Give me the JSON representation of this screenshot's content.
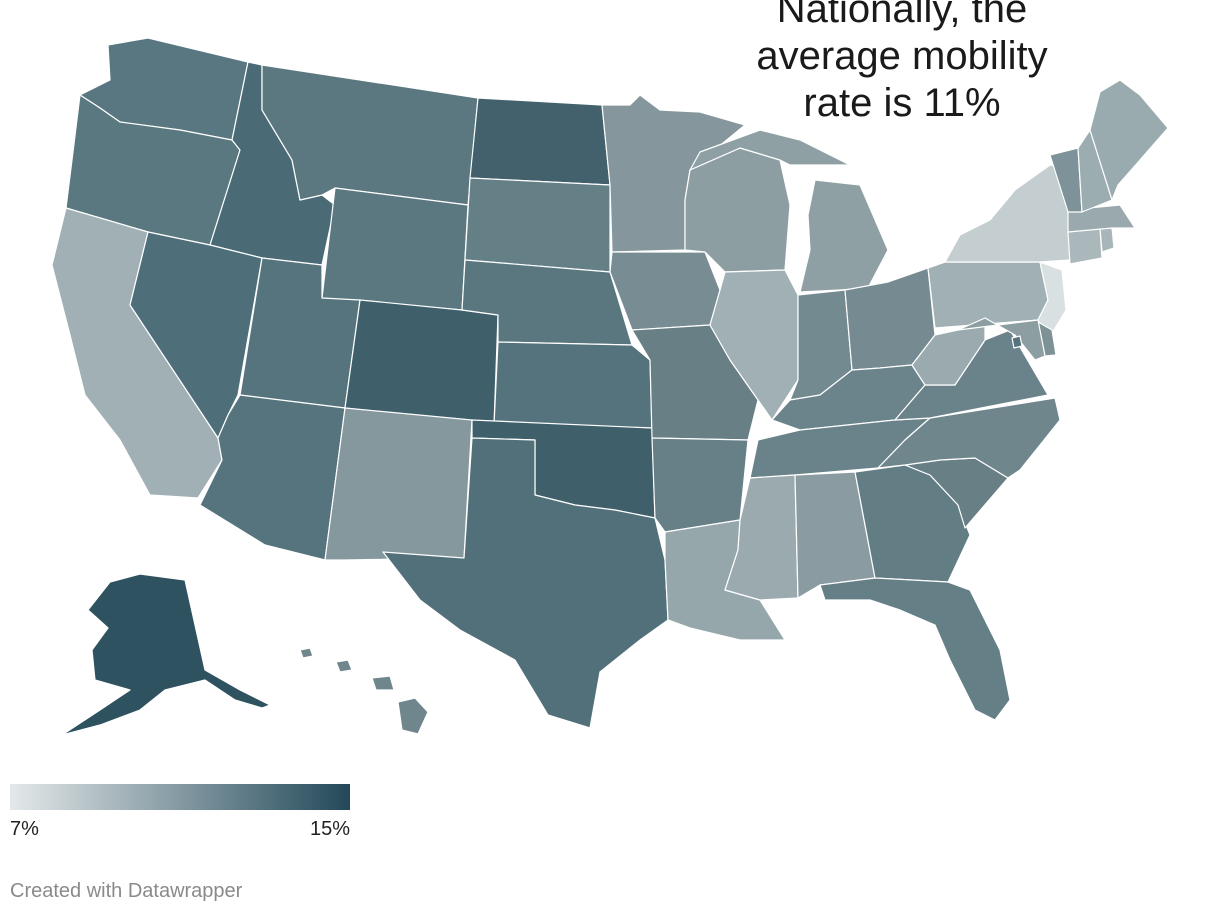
{
  "annotation": {
    "line1": "Nationally, the",
    "line2": "average mobility",
    "line3": "rate is 11%"
  },
  "legend": {
    "min_label": "7%",
    "max_label": "15%",
    "color_low": "#e4e9ea",
    "color_high": "#23495a"
  },
  "credit": "Created with Datawrapper",
  "colors": {
    "background": "#ffffff",
    "border": "#ffffff"
  },
  "states": {
    "WA": {
      "name": "Washington",
      "color": "#587780"
    },
    "OR": {
      "name": "Oregon",
      "color": "#5a7880"
    },
    "CA": {
      "name": "California",
      "color": "#a0b0b4"
    },
    "ID": {
      "name": "Idaho",
      "color": "#4a6a75"
    },
    "NV": {
      "name": "Nevada",
      "color": "#4e6e79"
    },
    "MT": {
      "name": "Montana",
      "color": "#5b7880"
    },
    "WY": {
      "name": "Wyoming",
      "color": "#5b7880"
    },
    "UT": {
      "name": "Utah",
      "color": "#55747e"
    },
    "AZ": {
      "name": "Arizona",
      "color": "#55747e"
    },
    "CO": {
      "name": "Colorado",
      "color": "#3f5f6b"
    },
    "NM": {
      "name": "New Mexico",
      "color": "#85989d"
    },
    "ND": {
      "name": "North Dakota",
      "color": "#42616d"
    },
    "SD": {
      "name": "South Dakota",
      "color": "#657f87"
    },
    "NE": {
      "name": "Nebraska",
      "color": "#5a7780"
    },
    "KS": {
      "name": "Kansas",
      "color": "#55737d"
    },
    "OK": {
      "name": "Oklahoma",
      "color": "#3f5f6b"
    },
    "TX": {
      "name": "Texas",
      "color": "#52707a"
    },
    "MN": {
      "name": "Minnesota",
      "color": "#85979c"
    },
    "IA": {
      "name": "Iowa",
      "color": "#788d93"
    },
    "MO": {
      "name": "Missouri",
      "color": "#687f86"
    },
    "AR": {
      "name": "Arkansas",
      "color": "#677f86"
    },
    "LA": {
      "name": "Louisiana",
      "color": "#95a7ab"
    },
    "WI": {
      "name": "Wisconsin",
      "color": "#8d9ea2"
    },
    "IL": {
      "name": "Illinois",
      "color": "#a1b0b4"
    },
    "MI": {
      "name": "Michigan",
      "color": "#8fa0a4"
    },
    "IN": {
      "name": "Indiana",
      "color": "#728a90"
    },
    "OH": {
      "name": "Ohio",
      "color": "#758b91"
    },
    "KY": {
      "name": "Kentucky",
      "color": "#6b838a"
    },
    "TN": {
      "name": "Tennessee",
      "color": "#6a8289"
    },
    "MS": {
      "name": "Mississippi",
      "color": "#9aaaae"
    },
    "AL": {
      "name": "Alabama",
      "color": "#8a9ca1"
    },
    "GA": {
      "name": "Georgia",
      "color": "#637d85"
    },
    "FL": {
      "name": "Florida",
      "color": "#657f87"
    },
    "SC": {
      "name": "South Carolina",
      "color": "#687f86"
    },
    "NC": {
      "name": "North Carolina",
      "color": "#6f868c"
    },
    "VA": {
      "name": "Virginia",
      "color": "#6a8289"
    },
    "WV": {
      "name": "West Virginia",
      "color": "#9aaaae"
    },
    "PA": {
      "name": "Pennsylvania",
      "color": "#a1b0b4"
    },
    "NY": {
      "name": "New York",
      "color": "#c4ced1"
    },
    "NJ": {
      "name": "New Jersey",
      "color": "#d9e0e2"
    },
    "DE": {
      "name": "Delaware",
      "color": "#7d9297"
    },
    "MD": {
      "name": "Maryland",
      "color": "#8d9ea2"
    },
    "DC": {
      "name": "District of Columbia",
      "color": "#55737d"
    },
    "CT": {
      "name": "Connecticut",
      "color": "#aab8bc"
    },
    "RI": {
      "name": "Rhode Island",
      "color": "#a8b6ba"
    },
    "MA": {
      "name": "Massachusetts",
      "color": "#99a9ad"
    },
    "VT": {
      "name": "Vermont",
      "color": "#7e9399"
    },
    "NH": {
      "name": "New Hampshire",
      "color": "#9badb1"
    },
    "ME": {
      "name": "Maine",
      "color": "#9aabaf"
    },
    "AK": {
      "name": "Alaska",
      "color": "#2f5260"
    },
    "HI": {
      "name": "Hawaii",
      "color": "#6f868c"
    }
  }
}
